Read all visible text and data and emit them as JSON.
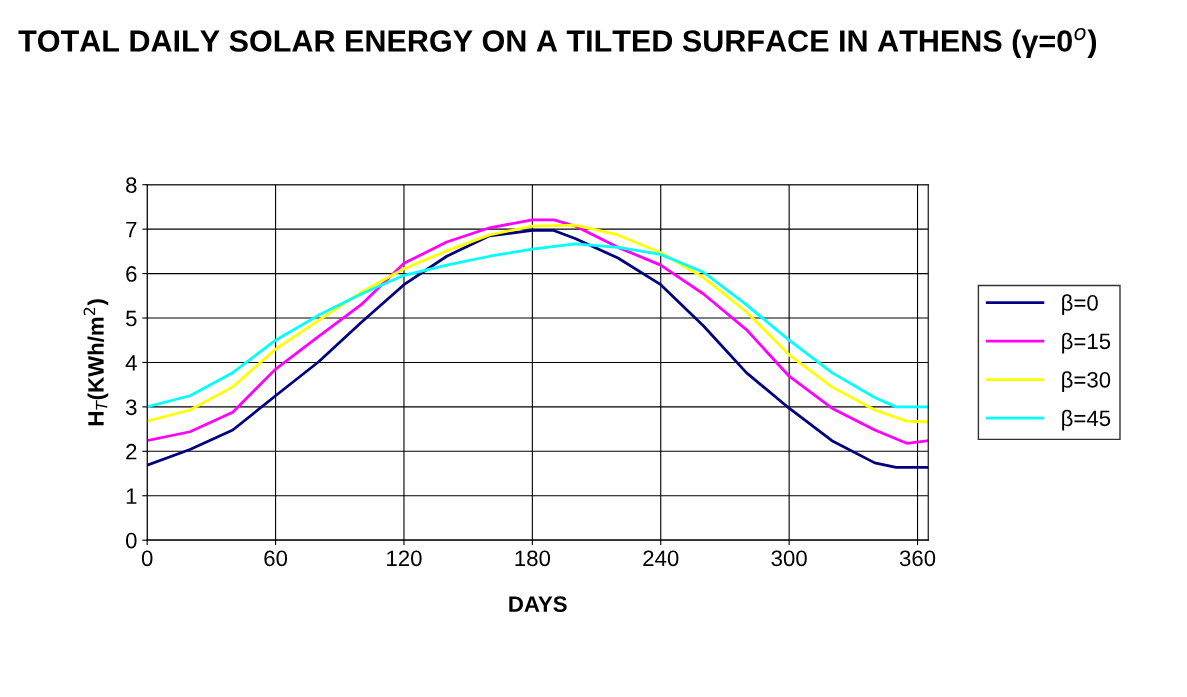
{
  "chart_data": {
    "type": "line",
    "title": "TOTAL DAILY SOLAR ENERGY ON A TILTED SURFACE IN ATHENS (γ=0$^{o}$)",
    "xlabel": "DAYS",
    "ylabel": "H$_{T}$(KWh/m$^{2}$)",
    "xlim": [
      0,
      365
    ],
    "xticks": [
      0,
      60,
      120,
      180,
      240,
      300,
      360
    ],
    "ylim": [
      0,
      8
    ],
    "yticks": [
      0,
      1,
      2,
      3,
      4,
      5,
      6,
      7,
      8
    ],
    "grid": true,
    "legend": "right",
    "marker": "none",
    "line_style": "solid",
    "series": [
      {
        "name": "β=0",
        "color": "#000080",
        "x": [
          0,
          20,
          40,
          60,
          80,
          100,
          120,
          140,
          160,
          180,
          190,
          200,
          220,
          240,
          260,
          280,
          300,
          320,
          340,
          350,
          365
        ],
        "values": [
          1.69,
          2.04,
          2.48,
          3.25,
          4.01,
          4.9,
          5.75,
          6.39,
          6.85,
          6.97,
          6.97,
          6.79,
          6.35,
          5.75,
          4.82,
          3.77,
          2.97,
          2.24,
          1.74,
          1.64,
          1.64
        ]
      },
      {
        "name": "β=15",
        "color": "#ff00ff",
        "x": [
          0,
          20,
          40,
          60,
          80,
          100,
          120,
          140,
          160,
          180,
          190,
          200,
          220,
          240,
          260,
          280,
          300,
          320,
          340,
          355,
          365
        ],
        "values": [
          2.24,
          2.44,
          2.88,
          3.85,
          4.58,
          5.3,
          6.23,
          6.71,
          7.03,
          7.21,
          7.21,
          7.07,
          6.59,
          6.19,
          5.54,
          4.74,
          3.69,
          2.97,
          2.48,
          2.18,
          2.24
        ]
      },
      {
        "name": "β=30",
        "color": "#ffff00",
        "x": [
          0,
          20,
          40,
          60,
          80,
          100,
          120,
          140,
          160,
          180,
          200,
          220,
          240,
          260,
          280,
          300,
          320,
          340,
          355,
          365
        ],
        "values": [
          2.68,
          2.93,
          3.45,
          4.3,
          4.94,
          5.58,
          6.11,
          6.51,
          6.87,
          7.07,
          7.09,
          6.87,
          6.47,
          5.91,
          5.14,
          4.17,
          3.45,
          2.93,
          2.68,
          2.66
        ]
      },
      {
        "name": "β=45",
        "color": "#00ffff",
        "x": [
          0,
          20,
          40,
          60,
          80,
          100,
          120,
          140,
          160,
          180,
          200,
          220,
          240,
          260,
          280,
          300,
          320,
          340,
          350,
          365
        ],
        "values": [
          3.0,
          3.25,
          3.77,
          4.5,
          5.06,
          5.54,
          5.96,
          6.19,
          6.39,
          6.55,
          6.67,
          6.59,
          6.43,
          6.03,
          5.3,
          4.5,
          3.77,
          3.21,
          3.0,
          3.0
        ]
      }
    ]
  }
}
